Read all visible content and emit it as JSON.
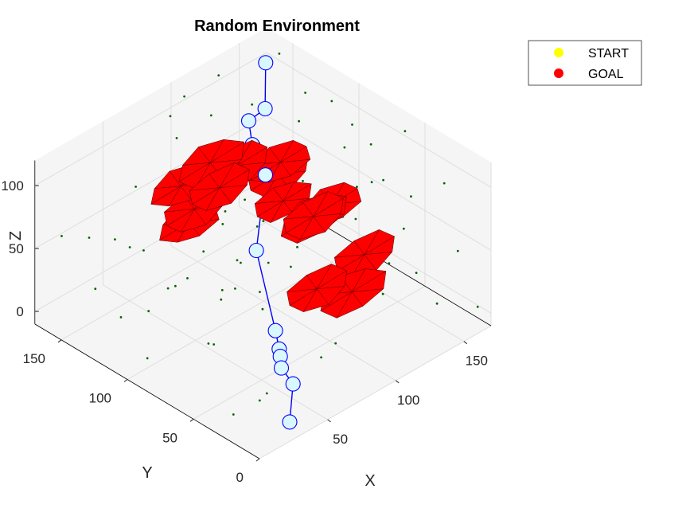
{
  "chart_data": {
    "type": "scatter",
    "projection": "3d",
    "title": "Random Environment",
    "xlabel": "X",
    "ylabel": "Y",
    "zlabel": "Z",
    "xlim": [
      0,
      170
    ],
    "ylim": [
      0,
      170
    ],
    "zlim": [
      -10,
      120
    ],
    "xticks": [
      50,
      100,
      150
    ],
    "yticks": [
      0,
      50,
      100,
      150
    ],
    "zticks": [
      0,
      50,
      100
    ],
    "grid": true,
    "legend": {
      "placement": "top-right",
      "entries": [
        {
          "label": "START",
          "color": "#ffff00"
        },
        {
          "label": "GOAL",
          "color": "#ff0000"
        }
      ]
    },
    "obstacle_color": "#ff0000",
    "path_color": "#0000ff",
    "waypoint_fill": "#d9f7ff",
    "point_color": "#006400",
    "path": [
      [
        28,
        6,
        -2
      ],
      [
        46,
        22,
        7
      ],
      [
        50,
        35,
        9
      ],
      [
        56,
        42,
        10
      ],
      [
        61,
        48,
        9
      ],
      [
        68,
        58,
        13
      ],
      [
        85,
        90,
        46
      ],
      [
        112,
        111,
        76
      ],
      [
        115,
        124,
        90
      ],
      [
        123,
        135,
        97
      ],
      [
        136,
        136,
        98
      ],
      [
        150,
        150,
        117
      ]
    ],
    "obstacles": [
      {
        "center": [
          88,
          128,
          90
        ],
        "size": 22
      },
      {
        "center": [
          106,
          126,
          78
        ],
        "size": 21
      },
      {
        "center": [
          124,
          112,
          78
        ],
        "size": 20
      },
      {
        "center": [
          130,
          120,
          60
        ],
        "size": 21
      },
      {
        "center": [
          90,
          123,
          72
        ],
        "size": 21
      },
      {
        "center": [
          78,
          140,
          70
        ],
        "size": 20
      },
      {
        "center": [
          86,
          138,
          48
        ],
        "size": 21
      },
      {
        "center": [
          90,
          146,
          30
        ],
        "size": 20
      },
      {
        "center": [
          126,
          112,
          46
        ],
        "size": 19
      },
      {
        "center": [
          130,
          94,
          42
        ],
        "size": 22
      },
      {
        "center": [
          123,
          86,
          52
        ],
        "size": 21
      },
      {
        "center": [
          142,
          92,
          46
        ],
        "size": 20
      },
      {
        "center": [
          145,
          70,
          18
        ],
        "size": 21
      },
      {
        "center": [
          128,
          62,
          4
        ],
        "size": 22
      },
      {
        "center": [
          112,
          72,
          10
        ],
        "size": 21
      }
    ],
    "points": [
      [
        10,
        10,
        110
      ],
      [
        25,
        40,
        105
      ],
      [
        40,
        80,
        112
      ],
      [
        60,
        120,
        100
      ],
      [
        80,
        150,
        118
      ],
      [
        100,
        160,
        115
      ],
      [
        130,
        165,
        110
      ],
      [
        160,
        150,
        118
      ],
      [
        150,
        120,
        112
      ],
      [
        165,
        100,
        90
      ],
      [
        140,
        60,
        115
      ],
      [
        120,
        30,
        118
      ],
      [
        90,
        20,
        112
      ],
      [
        70,
        5,
        95
      ],
      [
        15,
        70,
        80
      ],
      [
        30,
        100,
        95
      ],
      [
        45,
        140,
        90
      ],
      [
        20,
        130,
        70
      ],
      [
        10,
        160,
        60
      ],
      [
        35,
        165,
        40
      ],
      [
        60,
        160,
        20
      ],
      [
        75,
        165,
        5
      ],
      [
        100,
        165,
        0
      ],
      [
        130,
        160,
        5
      ],
      [
        160,
        165,
        20
      ],
      [
        165,
        140,
        40
      ],
      [
        165,
        110,
        10
      ],
      [
        160,
        80,
        60
      ],
      [
        150,
        40,
        80
      ],
      [
        165,
        20,
        40
      ],
      [
        140,
        10,
        20
      ],
      [
        120,
        5,
        60
      ],
      [
        100,
        5,
        80
      ],
      [
        80,
        10,
        60
      ],
      [
        55,
        10,
        30
      ],
      [
        40,
        20,
        10
      ],
      [
        20,
        15,
        20
      ],
      [
        10,
        30,
        0
      ],
      [
        15,
        50,
        40
      ],
      [
        30,
        60,
        60
      ],
      [
        50,
        70,
        50
      ],
      [
        60,
        90,
        30
      ],
      [
        70,
        100,
        70
      ],
      [
        95,
        95,
        60
      ],
      [
        105,
        110,
        40
      ],
      [
        115,
        90,
        30
      ],
      [
        95,
        60,
        20
      ],
      [
        80,
        50,
        40
      ],
      [
        70,
        35,
        60
      ],
      [
        100,
        40,
        95
      ],
      [
        120,
        50,
        100
      ],
      [
        140,
        80,
        100
      ],
      [
        155,
        130,
        80
      ],
      [
        140,
        150,
        90
      ],
      [
        110,
        150,
        100
      ],
      [
        85,
        130,
        20
      ],
      [
        100,
        120,
        10
      ],
      [
        60,
        130,
        50
      ],
      [
        45,
        110,
        30
      ],
      [
        35,
        120,
        10
      ],
      [
        25,
        150,
        15
      ],
      [
        5,
        110,
        30
      ],
      [
        5,
        90,
        10
      ],
      [
        12,
        75,
        115
      ],
      [
        50,
        30,
        118
      ],
      [
        90,
        60,
        117
      ],
      [
        75,
        140,
        110
      ],
      [
        150,
        100,
        118
      ],
      [
        165,
        60,
        110
      ],
      [
        155,
        20,
        100
      ],
      [
        135,
        30,
        70
      ],
      [
        110,
        20,
        40
      ],
      [
        85,
        30,
        10
      ],
      [
        65,
        55,
        5
      ],
      [
        45,
        85,
        0
      ],
      [
        25,
        95,
        50
      ],
      [
        95,
        80,
        85
      ],
      [
        110,
        130,
        60
      ],
      [
        125,
        140,
        30
      ],
      [
        150,
        155,
        50
      ],
      [
        160,
        125,
        5
      ],
      [
        145,
        105,
        25
      ],
      [
        120,
        100,
        5
      ],
      [
        105,
        85,
        0
      ],
      [
        75,
        75,
        15
      ],
      [
        55,
        50,
        80
      ],
      [
        40,
        45,
        100
      ],
      [
        20,
        5,
        60
      ],
      [
        5,
        5,
        30
      ],
      [
        165,
        5,
        5
      ]
    ]
  }
}
